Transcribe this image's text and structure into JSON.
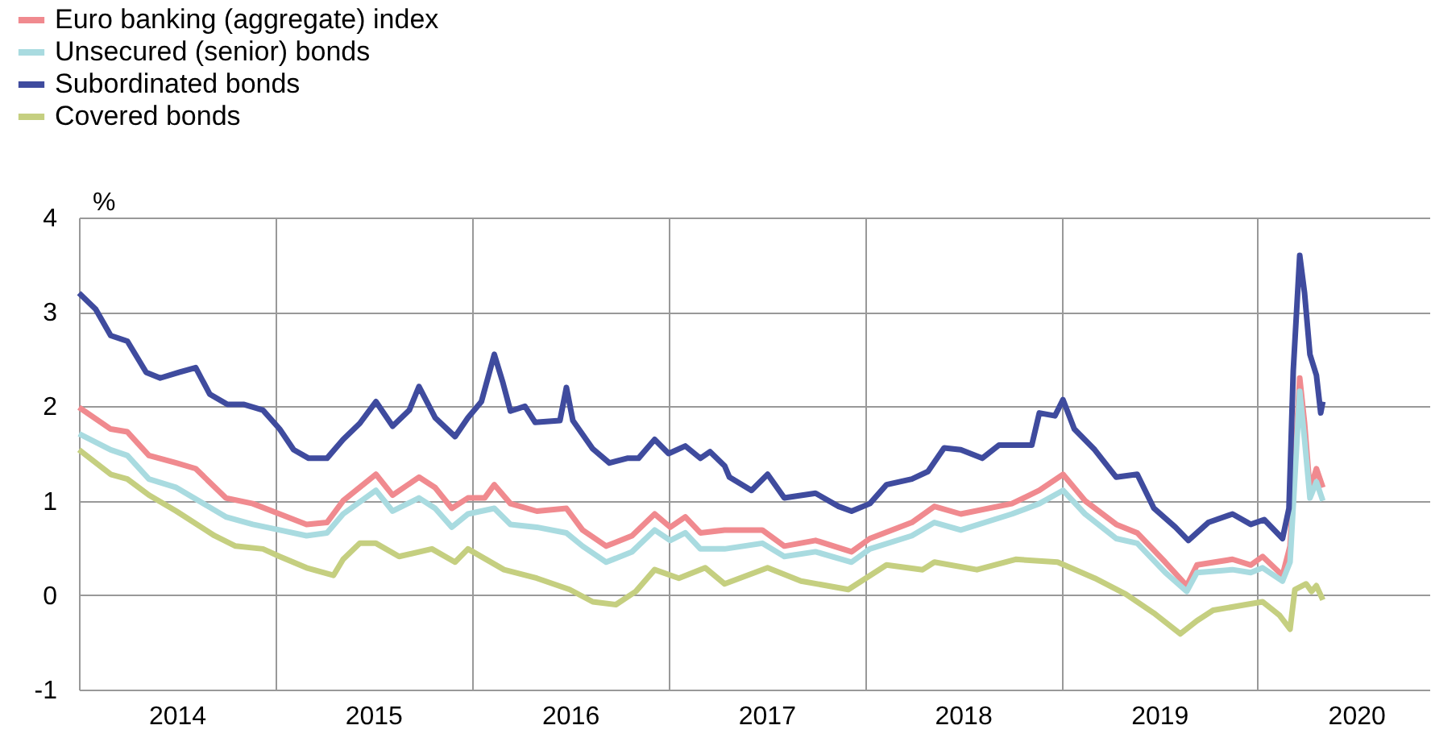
{
  "chart_data": {
    "type": "line",
    "ylabel": "%",
    "legend": "top left",
    "grid": true,
    "line_style": "solid",
    "marker": "none",
    "xlim": [
      "2014-01-01",
      "2020-11-15"
    ],
    "xticks": [
      {
        "value": "2014-07-02",
        "label": "2014"
      },
      {
        "value": "2015-01-01",
        "label": null
      },
      {
        "value": "2015-07-02",
        "label": "2015"
      },
      {
        "value": "2016-01-01",
        "label": null
      },
      {
        "value": "2016-07-02",
        "label": "2016"
      },
      {
        "value": "2017-01-01",
        "label": null
      },
      {
        "value": "2017-07-02",
        "label": "2017"
      },
      {
        "value": "2018-01-01",
        "label": null
      },
      {
        "value": "2018-07-02",
        "label": "2018"
      },
      {
        "value": "2019-01-01",
        "label": null
      },
      {
        "value": "2019-07-02",
        "label": "2019"
      },
      {
        "value": "2020-01-01",
        "label": null
      },
      {
        "value": "2020-07-02",
        "label": "2020"
      }
    ],
    "ylim": [
      -1,
      4
    ],
    "yticks": [
      -1,
      0,
      1,
      2,
      3,
      4
    ],
    "series": [
      {
        "name": "Euro banking (aggregate) index",
        "color": "#f08a8f",
        "x": [
          "2014-01-01",
          "2014-03-01",
          "2014-04-01",
          "2014-05-11",
          "2014-07-01",
          "2014-08-06",
          "2014-10-01",
          "2014-11-20",
          "2015-01-09",
          "2015-02-28",
          "2015-04-07",
          "2015-05-07",
          "2015-07-07",
          "2015-08-07",
          "2015-09-25",
          "2015-10-25",
          "2015-11-25",
          "2015-12-25",
          "2016-01-25",
          "2016-02-12",
          "2016-03-13",
          "2016-05-01",
          "2016-06-25",
          "2016-07-25",
          "2016-09-07",
          "2016-10-25",
          "2016-12-06",
          "2017-01-04",
          "2017-02-01",
          "2017-03-01",
          "2017-04-15",
          "2017-06-24",
          "2017-08-04",
          "2017-10-01",
          "2017-12-07",
          "2018-01-10",
          "2018-03-29",
          "2018-05-10",
          "2018-06-28",
          "2018-10-01",
          "2018-11-21",
          "2019-01-04",
          "2019-02-14",
          "2019-04-13",
          "2019-05-22",
          "2019-07-13",
          "2019-08-22",
          "2019-09-10",
          "2019-11-15",
          "2019-12-19",
          "2020-01-10",
          "2020-02-16",
          "2020-03-01",
          "2020-03-19",
          "2020-03-28",
          "2020-04-07",
          "2020-04-19",
          "2020-05-01"
        ],
        "values": [
          1.99,
          1.76,
          1.73,
          1.48,
          1.4,
          1.34,
          1.03,
          0.97,
          0.86,
          0.75,
          0.77,
          1.0,
          1.28,
          1.06,
          1.25,
          1.14,
          0.92,
          1.03,
          1.03,
          1.17,
          0.97,
          0.89,
          0.92,
          0.69,
          0.52,
          0.63,
          0.86,
          0.72,
          0.83,
          0.66,
          0.69,
          0.69,
          0.52,
          0.58,
          0.46,
          0.6,
          0.77,
          0.94,
          0.86,
          0.97,
          1.11,
          1.28,
          1.0,
          0.75,
          0.66,
          0.35,
          0.1,
          0.32,
          0.38,
          0.32,
          0.41,
          0.21,
          0.52,
          2.3,
          1.82,
          1.11,
          1.34,
          1.14
        ]
      },
      {
        "name": "Unsecured (senior) bonds",
        "color": "#a9dbe0",
        "x": [
          "2014-01-01",
          "2014-03-01",
          "2014-04-01",
          "2014-05-11",
          "2014-07-01",
          "2014-10-01",
          "2014-11-20",
          "2015-01-09",
          "2015-02-28",
          "2015-04-07",
          "2015-05-07",
          "2015-07-07",
          "2015-08-07",
          "2015-09-25",
          "2015-10-25",
          "2015-11-25",
          "2015-12-25",
          "2016-02-12",
          "2016-03-13",
          "2016-05-01",
          "2016-06-25",
          "2016-07-25",
          "2016-09-07",
          "2016-10-25",
          "2016-12-06",
          "2017-01-04",
          "2017-02-01",
          "2017-03-01",
          "2017-04-15",
          "2017-06-24",
          "2017-08-04",
          "2017-10-01",
          "2017-12-07",
          "2018-01-10",
          "2018-03-29",
          "2018-05-10",
          "2018-06-28",
          "2018-10-01",
          "2018-11-21",
          "2019-01-04",
          "2019-02-14",
          "2019-04-13",
          "2019-05-22",
          "2019-07-13",
          "2019-08-22",
          "2019-09-10",
          "2019-11-15",
          "2019-12-19",
          "2020-01-10",
          "2020-02-16",
          "2020-03-01",
          "2020-03-19",
          "2020-03-28",
          "2020-04-07",
          "2020-04-19",
          "2020-05-01"
        ],
        "values": [
          1.71,
          1.54,
          1.48,
          1.23,
          1.14,
          0.83,
          0.75,
          0.69,
          0.63,
          0.66,
          0.86,
          1.11,
          0.89,
          1.03,
          0.92,
          0.72,
          0.86,
          0.92,
          0.75,
          0.72,
          0.66,
          0.52,
          0.35,
          0.46,
          0.69,
          0.58,
          0.66,
          0.49,
          0.49,
          0.55,
          0.41,
          0.46,
          0.35,
          0.49,
          0.63,
          0.77,
          0.69,
          0.86,
          0.97,
          1.11,
          0.86,
          0.6,
          0.55,
          0.24,
          0.04,
          0.24,
          0.27,
          0.24,
          0.29,
          0.15,
          0.35,
          2.16,
          1.65,
          1.03,
          1.2,
          1.0
        ]
      },
      {
        "name": "Subordinated bonds",
        "color": "#3f4b9e",
        "x": [
          "2014-01-01",
          "2014-02-01",
          "2014-03-01",
          "2014-04-01",
          "2014-05-06",
          "2014-06-01",
          "2014-07-06",
          "2014-08-06",
          "2014-09-01",
          "2014-10-04",
          "2014-11-04",
          "2014-12-09",
          "2015-01-09",
          "2015-02-04",
          "2015-03-04",
          "2015-04-07",
          "2015-05-07",
          "2015-06-07",
          "2015-07-07",
          "2015-08-07",
          "2015-09-07",
          "2015-09-25",
          "2015-10-25",
          "2015-12-01",
          "2015-12-25",
          "2016-01-19",
          "2016-02-12",
          "2016-02-28",
          "2016-03-13",
          "2016-04-09",
          "2016-04-28",
          "2016-06-13",
          "2016-06-25",
          "2016-07-07",
          "2016-08-13",
          "2016-09-13",
          "2016-10-16",
          "2016-11-06",
          "2016-12-06",
          "2017-01-01",
          "2017-02-01",
          "2017-03-01",
          "2017-03-19",
          "2017-04-15",
          "2017-04-24",
          "2017-06-04",
          "2017-07-04",
          "2017-08-04",
          "2017-10-01",
          "2017-11-13",
          "2017-12-07",
          "2018-01-10",
          "2018-02-10",
          "2018-03-29",
          "2018-04-28",
          "2018-05-28",
          "2018-06-28",
          "2018-08-07",
          "2018-09-07",
          "2018-11-07",
          "2018-11-21",
          "2018-12-20",
          "2019-01-04",
          "2019-01-25",
          "2019-03-04",
          "2019-04-13",
          "2019-05-22",
          "2019-06-22",
          "2019-08-01",
          "2019-08-25",
          "2019-10-01",
          "2019-11-15",
          "2019-12-19",
          "2020-01-13",
          "2020-02-16",
          "2020-02-28",
          "2020-03-07",
          "2020-03-19",
          "2020-03-28",
          "2020-04-07",
          "2020-04-19",
          "2020-04-27",
          "2020-05-01"
        ],
        "values": [
          3.2,
          3.03,
          2.75,
          2.69,
          2.36,
          2.3,
          2.36,
          2.41,
          2.13,
          2.02,
          2.02,
          1.96,
          1.76,
          1.54,
          1.45,
          1.45,
          1.65,
          1.82,
          2.05,
          1.79,
          1.96,
          2.21,
          1.88,
          1.68,
          1.88,
          2.05,
          2.55,
          2.25,
          1.95,
          2.0,
          1.83,
          1.85,
          2.2,
          1.85,
          1.55,
          1.4,
          1.45,
          1.45,
          1.65,
          1.5,
          1.58,
          1.45,
          1.52,
          1.37,
          1.25,
          1.11,
          1.28,
          1.03,
          1.08,
          0.94,
          0.89,
          0.97,
          1.17,
          1.23,
          1.31,
          1.56,
          1.54,
          1.45,
          1.59,
          1.59,
          1.93,
          1.9,
          2.07,
          1.76,
          1.54,
          1.25,
          1.28,
          0.92,
          0.72,
          0.58,
          0.77,
          0.86,
          0.75,
          0.8,
          0.6,
          0.92,
          2.38,
          3.6,
          3.2,
          2.55,
          2.33,
          1.93,
          2.05
        ]
      },
      {
        "name": "Covered bonds",
        "color": "#c5cf80",
        "x": [
          "2014-01-01",
          "2014-03-01",
          "2014-04-01",
          "2014-05-11",
          "2014-07-01",
          "2014-09-10",
          "2014-10-19",
          "2014-12-09",
          "2015-01-09",
          "2015-02-28",
          "2015-04-19",
          "2015-05-07",
          "2015-06-07",
          "2015-07-07",
          "2015-08-19",
          "2015-10-19",
          "2015-12-01",
          "2015-12-25",
          "2016-03-01",
          "2016-05-01",
          "2016-07-01",
          "2016-08-13",
          "2016-09-25",
          "2016-11-01",
          "2016-12-06",
          "2017-01-20",
          "2017-03-10",
          "2017-04-15",
          "2017-07-04",
          "2017-09-04",
          "2017-12-01",
          "2018-02-10",
          "2018-04-18",
          "2018-05-10",
          "2018-07-28",
          "2018-10-08",
          "2018-12-25",
          "2019-03-04",
          "2019-05-01",
          "2019-06-22",
          "2019-08-10",
          "2019-09-10",
          "2019-10-10",
          "2019-12-10",
          "2020-01-10",
          "2020-02-10",
          "2020-03-01",
          "2020-03-10",
          "2020-03-31",
          "2020-04-10",
          "2020-04-19",
          "2020-05-01"
        ],
        "values": [
          1.54,
          1.28,
          1.23,
          1.06,
          0.89,
          0.63,
          0.52,
          0.49,
          0.41,
          0.29,
          0.21,
          0.38,
          0.55,
          0.55,
          0.41,
          0.49,
          0.35,
          0.49,
          0.27,
          0.18,
          0.06,
          -0.07,
          -0.1,
          0.04,
          0.27,
          0.18,
          0.29,
          0.12,
          0.29,
          0.15,
          0.06,
          0.32,
          0.27,
          0.35,
          0.27,
          0.38,
          0.35,
          0.18,
          0.01,
          -0.19,
          -0.41,
          -0.27,
          -0.16,
          -0.1,
          -0.07,
          -0.21,
          -0.36,
          0.06,
          0.12,
          0.04,
          0.1,
          -0.05
        ]
      }
    ]
  }
}
